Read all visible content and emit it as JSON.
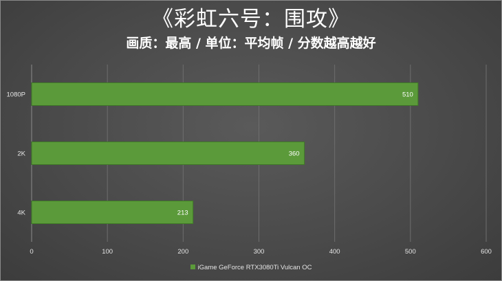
{
  "header": {
    "title": "《彩虹六号：围攻》",
    "subtitle": "画质：最高 / 单位：平均帧 / 分数越高越好"
  },
  "chart_data": {
    "type": "bar",
    "orientation": "horizontal",
    "categories": [
      "1080P",
      "2K",
      "4K"
    ],
    "series": [
      {
        "name": "iGame GeForce RTX3080Ti Vulcan OC",
        "values": [
          510,
          360,
          213
        ],
        "color": "#5b9a3a"
      }
    ],
    "xlim": [
      0,
      600
    ],
    "xticks": [
      0,
      100,
      200,
      300,
      400,
      500,
      600
    ],
    "grid": true,
    "legend_position": "bottom",
    "data_labels": true
  },
  "colors": {
    "background": "#4a4a4a",
    "bar": "#5b9a3a",
    "bar_border": "#3f7a26",
    "grid": "#6e6e6e",
    "text": "#ffffff"
  }
}
